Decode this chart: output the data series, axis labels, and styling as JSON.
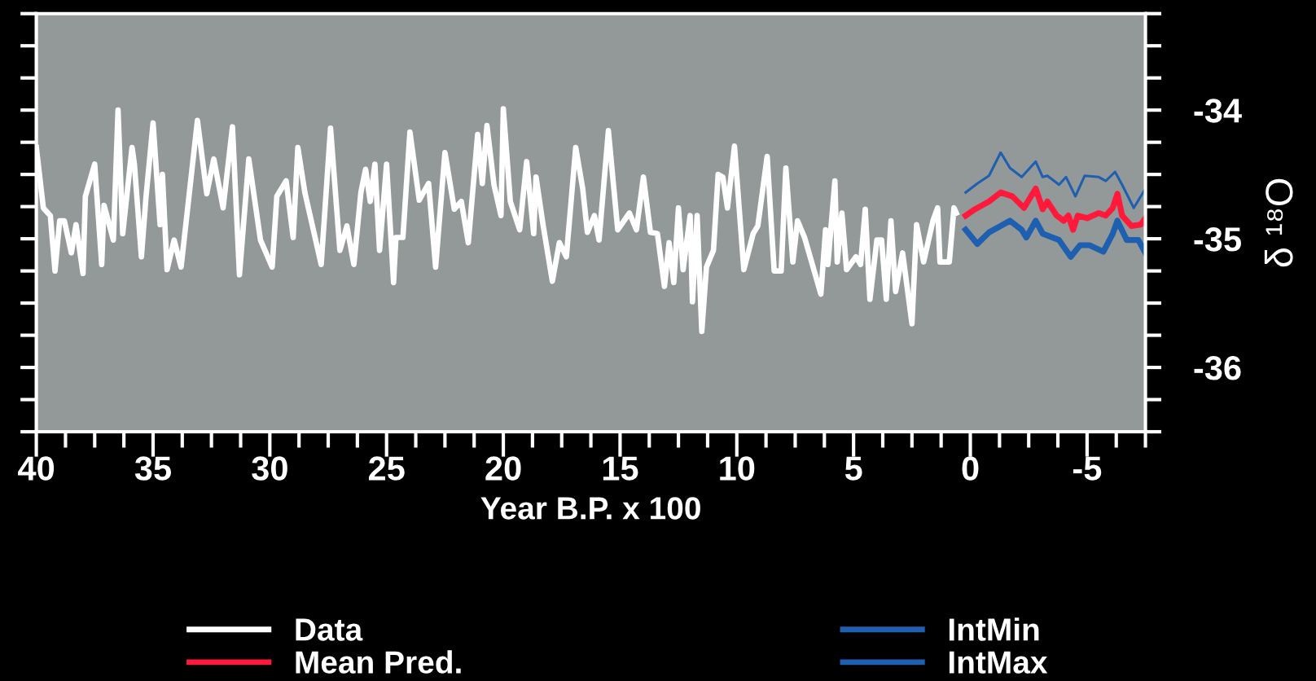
{
  "chart_data": {
    "type": "line",
    "xlabel": "Year B.P. x 100",
    "ylabel": "δ ¹⁸O",
    "xlim": [
      40,
      -7.5
    ],
    "ylim": [
      -36.5,
      -33.25
    ],
    "xticks": [
      40,
      {
        "value": 38.75,
        "label": null
      },
      {
        "value": 37.5,
        "label": null
      },
      {
        "value": 36.25,
        "label": null
      },
      35,
      {
        "value": 33.75,
        "label": null
      },
      {
        "value": 32.5,
        "label": null
      },
      {
        "value": 31.25,
        "label": null
      },
      30,
      {
        "value": 28.75,
        "label": null
      },
      {
        "value": 27.5,
        "label": null
      },
      {
        "value": 26.25,
        "label": null
      },
      25,
      {
        "value": 23.75,
        "label": null
      },
      {
        "value": 22.5,
        "label": null
      },
      {
        "value": 21.25,
        "label": null
      },
      20,
      {
        "value": 18.75,
        "label": null
      },
      {
        "value": 17.5,
        "label": null
      },
      {
        "value": 16.25,
        "label": null
      },
      15,
      {
        "value": 13.75,
        "label": null
      },
      {
        "value": 12.5,
        "label": null
      },
      {
        "value": 11.25,
        "label": null
      },
      10,
      {
        "value": 8.75,
        "label": null
      },
      {
        "value": 7.5,
        "label": null
      },
      {
        "value": 6.25,
        "label": null
      },
      5,
      {
        "value": 3.75,
        "label": null
      },
      {
        "value": 2.5,
        "label": null
      },
      {
        "value": 1.25,
        "label": null
      },
      0,
      {
        "value": -1.25,
        "label": null
      },
      {
        "value": -2.5,
        "label": null
      },
      {
        "value": -3.75,
        "label": null
      },
      -5,
      {
        "value": -6.25,
        "label": null
      },
      {
        "value": -7.5,
        "label": null
      }
    ],
    "yticks": [
      {
        "value": -33.25,
        "label": null
      },
      {
        "value": -33.5,
        "label": null
      },
      {
        "value": -33.75,
        "label": null
      },
      -34,
      {
        "value": -34.25,
        "label": null
      },
      {
        "value": -34.5,
        "label": null
      },
      {
        "value": -34.75,
        "label": null
      },
      -35,
      {
        "value": -35.25,
        "label": null
      },
      {
        "value": -35.5,
        "label": null
      },
      {
        "value": -35.75,
        "label": null
      },
      -36,
      {
        "value": -36.25,
        "label": null
      },
      {
        "value": -36.5,
        "label": null
      }
    ],
    "grid": false,
    "legend": "bottom",
    "marker": "none",
    "line_style": "solid",
    "series": [
      {
        "name": "Data",
        "color": "#ffffff",
        "x": [
          40.0,
          39.7,
          39.4,
          39.2,
          39.0,
          38.8,
          38.5,
          38.3,
          38.0,
          37.9,
          37.5,
          37.2,
          37.1,
          36.7,
          36.5,
          36.3,
          35.9,
          35.8,
          35.5,
          35.3,
          35.0,
          34.7,
          34.6,
          34.4,
          34.1,
          33.8,
          33.1,
          32.7,
          32.4,
          32.0,
          31.6,
          31.3,
          30.9,
          30.4,
          29.9,
          29.7,
          29.3,
          29.0,
          28.8,
          28.5,
          28.1,
          27.8,
          27.4,
          27.0,
          26.7,
          26.4,
          26.1,
          25.9,
          25.7,
          25.5,
          25.3,
          25.0,
          24.7,
          24.6,
          24.3,
          24.0,
          23.6,
          23.2,
          22.9,
          22.5,
          22.1,
          21.8,
          21.5,
          21.1,
          20.9,
          20.7,
          20.4,
          20.1,
          20.0,
          19.7,
          19.3,
          19.0,
          18.7,
          18.6,
          18.3,
          17.9,
          17.6,
          17.3,
          16.9,
          16.6,
          16.4,
          16.1,
          15.9,
          15.5,
          15.1,
          14.6,
          14.3,
          14.0,
          13.7,
          13.4,
          13.1,
          12.9,
          12.7,
          12.5,
          12.3,
          12.0,
          11.9,
          11.7,
          11.5,
          11.3,
          11.0,
          10.8,
          10.6,
          10.4,
          10.1,
          9.7,
          9.3,
          9.1,
          8.7,
          8.4,
          8.1,
          7.9,
          7.6,
          7.4,
          7.1,
          6.4,
          6.2,
          6.1,
          5.8,
          5.7,
          5.5,
          5.3,
          4.9,
          4.7,
          4.5,
          4.3,
          4.0,
          3.8,
          3.6,
          3.4,
          3.2,
          2.9,
          2.5,
          2.3,
          2.0,
          1.6,
          1.4,
          1.3,
          0.9,
          0.7,
          0.6
        ],
        "values": [
          -34.29,
          -34.76,
          -34.82,
          -35.25,
          -34.86,
          -34.86,
          -35.11,
          -34.89,
          -35.27,
          -34.67,
          -34.42,
          -35.2,
          -34.74,
          -35.01,
          -34.0,
          -34.96,
          -34.29,
          -34.42,
          -35.14,
          -34.67,
          -34.1,
          -34.89,
          -34.5,
          -35.24,
          -35.01,
          -35.22,
          -34.08,
          -34.65,
          -34.38,
          -34.76,
          -34.13,
          -35.28,
          -34.38,
          -35.01,
          -35.22,
          -34.67,
          -34.55,
          -34.99,
          -34.29,
          -34.64,
          -34.96,
          -35.2,
          -34.14,
          -35.09,
          -34.9,
          -35.2,
          -34.64,
          -34.46,
          -34.71,
          -34.42,
          -35.09,
          -34.42,
          -35.34,
          -34.99,
          -34.99,
          -34.17,
          -34.7,
          -34.57,
          -35.22,
          -34.33,
          -34.77,
          -34.71,
          -35.03,
          -34.19,
          -34.57,
          -34.12,
          -34.58,
          -34.82,
          -33.99,
          -34.71,
          -34.93,
          -34.4,
          -34.96,
          -34.52,
          -34.89,
          -35.33,
          -35.03,
          -35.14,
          -34.29,
          -34.61,
          -34.95,
          -34.82,
          -35.01,
          -34.16,
          -34.93,
          -34.8,
          -34.93,
          -34.52,
          -34.95,
          -34.96,
          -35.37,
          -35.03,
          -35.34,
          -34.76,
          -35.24,
          -34.82,
          -35.49,
          -34.82,
          -35.72,
          -35.22,
          -35.09,
          -34.5,
          -34.52,
          -34.76,
          -34.28,
          -35.24,
          -34.96,
          -34.9,
          -34.36,
          -35.25,
          -35.25,
          -34.45,
          -35.18,
          -34.86,
          -34.99,
          -35.43,
          -34.93,
          -35.2,
          -34.55,
          -35.18,
          -34.8,
          -35.24,
          -35.14,
          -35.2,
          -34.77,
          -35.47,
          -35.01,
          -35.01,
          -35.47,
          -34.86,
          -35.41,
          -35.11,
          -35.66,
          -34.89,
          -35.18,
          -34.86,
          -34.76,
          -35.18,
          -35.18,
          -34.76,
          -34.8
        ]
      },
      {
        "name": "Mean Pred.",
        "color": "#ff1a3c",
        "x": [
          0.2,
          -0.2,
          -0.8,
          -1.3,
          -1.8,
          -2.3,
          -2.5,
          -2.8,
          -3.1,
          -3.3,
          -3.7,
          -4.0,
          -4.2,
          -4.4,
          -4.6,
          -5.0,
          -5.5,
          -5.8,
          -6.1,
          -6.3,
          -6.5,
          -6.9,
          -7.3,
          -7.5
        ],
        "values": [
          -34.82,
          -34.77,
          -34.71,
          -34.64,
          -34.67,
          -34.76,
          -34.7,
          -34.61,
          -34.77,
          -34.71,
          -34.82,
          -34.86,
          -34.82,
          -34.93,
          -34.82,
          -34.84,
          -34.8,
          -34.82,
          -34.76,
          -34.65,
          -34.82,
          -34.9,
          -34.89,
          -34.84
        ]
      },
      {
        "name": "IntMin",
        "color": "#1f5fb0",
        "x": [
          0.2,
          -0.3,
          -0.8,
          -1.3,
          -1.7,
          -2.2,
          -2.4,
          -2.8,
          -3.1,
          -3.8,
          -4.3,
          -4.7,
          -5.1,
          -5.7,
          -6.1,
          -6.3,
          -6.7,
          -7.2,
          -7.5
        ],
        "values": [
          -34.93,
          -35.04,
          -34.95,
          -34.9,
          -34.86,
          -34.93,
          -34.99,
          -34.86,
          -34.96,
          -35.01,
          -35.14,
          -35.05,
          -35.05,
          -35.1,
          -34.96,
          -34.86,
          -35.01,
          -35.01,
          -35.11
        ]
      },
      {
        "name": "IntMax",
        "color": "#1f5fb0",
        "x": [
          0.2,
          -0.3,
          -0.8,
          -1.3,
          -1.7,
          -2.2,
          -2.4,
          -2.8,
          -3.1,
          -3.3,
          -3.8,
          -4.1,
          -4.5,
          -4.9,
          -5.5,
          -5.8,
          -6.2,
          -6.5,
          -7.0,
          -7.5
        ],
        "values": [
          -34.64,
          -34.57,
          -34.51,
          -34.33,
          -34.45,
          -34.52,
          -34.48,
          -34.4,
          -34.52,
          -34.51,
          -34.58,
          -34.52,
          -34.67,
          -34.51,
          -34.52,
          -34.55,
          -34.48,
          -34.58,
          -34.76,
          -34.61
        ]
      }
    ]
  }
}
